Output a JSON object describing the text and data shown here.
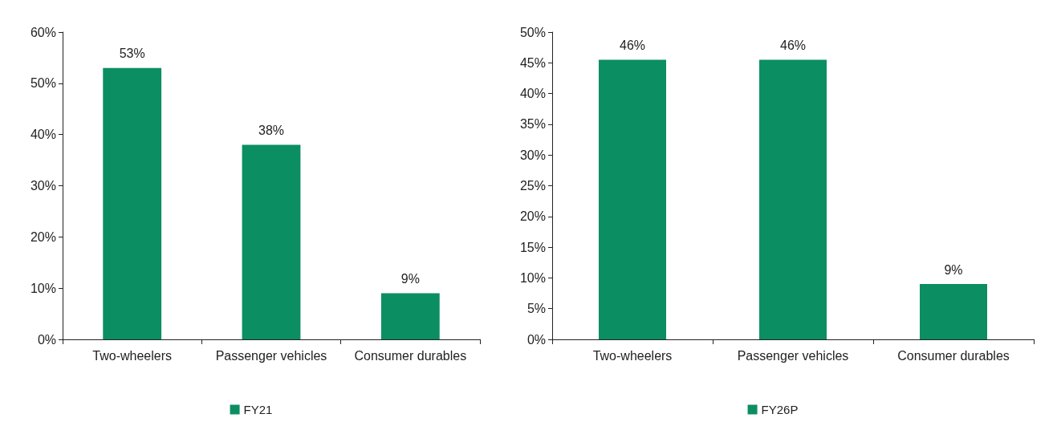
{
  "chart_data": [
    {
      "type": "bar",
      "categories": [
        "Two-wheelers",
        "Passenger vehicles",
        "Consumer durables"
      ],
      "series": [
        {
          "name": "FY21",
          "color": "#0b8e62",
          "values": [
            53,
            38,
            9
          ],
          "value_labels": [
            "53%",
            "38%",
            "9%"
          ]
        }
      ],
      "ylim": [
        0,
        60
      ],
      "yticks": [
        {
          "value": 0,
          "label": "0%"
        },
        {
          "value": 10,
          "label": "10%"
        },
        {
          "value": 20,
          "label": "20%"
        },
        {
          "value": 30,
          "label": "30%"
        },
        {
          "value": 40,
          "label": "40%"
        },
        {
          "value": 50,
          "label": "50%"
        },
        {
          "value": 60,
          "label": "60%"
        }
      ],
      "grid": false,
      "legend": "bottom"
    },
    {
      "type": "bar",
      "categories": [
        "Two-wheelers",
        "Passenger vehicles",
        "Consumer durables"
      ],
      "series": [
        {
          "name": "FY26P",
          "color": "#0b8e62",
          "values": [
            45.5,
            45.5,
            9
          ],
          "value_labels": [
            "46%",
            "46%",
            "9%"
          ]
        }
      ],
      "ylim": [
        0,
        50
      ],
      "yticks": [
        {
          "value": 0,
          "label": "0%"
        },
        {
          "value": 5,
          "label": "5%"
        },
        {
          "value": 10,
          "label": "10%"
        },
        {
          "value": 15,
          "label": "15%"
        },
        {
          "value": 20,
          "label": "20%"
        },
        {
          "value": 25,
          "label": "25%"
        },
        {
          "value": 30,
          "label": "30%"
        },
        {
          "value": 35,
          "label": "35%"
        },
        {
          "value": 40,
          "label": "40%"
        },
        {
          "value": 45,
          "label": "45%"
        },
        {
          "value": 50,
          "label": "50%"
        }
      ],
      "grid": false,
      "legend": "bottom"
    }
  ]
}
